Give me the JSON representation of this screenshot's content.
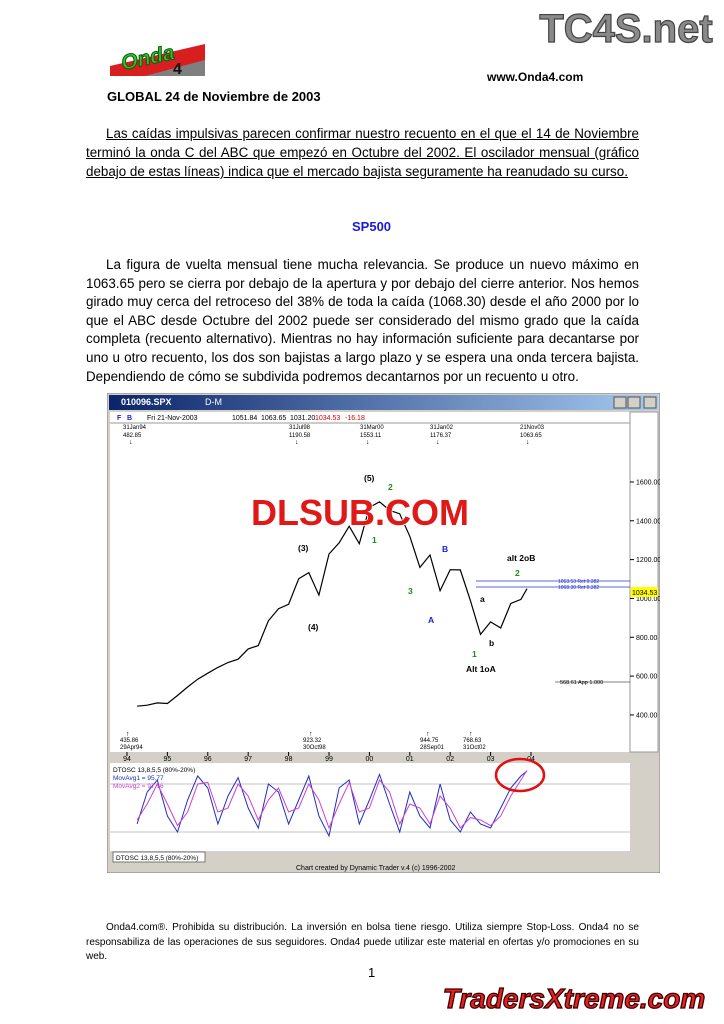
{
  "watermarks": {
    "top": "TC4S.net",
    "center": "DLSUB.COM",
    "bottom": "TradersXtreme.com"
  },
  "logo": {
    "word": "Onda",
    "number": "4"
  },
  "header": {
    "url": "www.Onda4.com",
    "title": "GLOBAL 24 de Noviembre de 2003"
  },
  "intro": "Las caídas impulsivas parecen confirmar nuestro recuento en el que el 14 de Noviembre terminó la onda C del ABC que empezó en Octubre del 2002. El oscilador mensual (gráfico debajo de estas líneas) indica que el mercado bajista seguramente ha reanudado su curso.",
  "section": "SP500",
  "body": "La figura de vuelta mensual tiene mucha relevancia. Se produce un nuevo máximo en 1063.65 pero se cierra por debajo de la apertura y por debajo del cierre anterior. Nos hemos girado muy cerca del retroceso del 38% de toda la caída (1068.30) desde el año 2000 por lo que el ABC desde Octubre del 2002 puede ser considerado del mismo grado que la caída completa (recuento alternativo). Mientras no hay información suficiente para decantarse por uno u otro recuento, los dos son bajistas a largo plazo y se espera una onda tercera bajista. Dependiendo de cómo se subdivida podremos decantarnos por un recuento u otro.",
  "figure": {
    "window_title": "010096.SPX",
    "period": "D-M",
    "toolbar": [
      "F",
      "B",
      "Fri 21-Nov-2003",
      "1051.84",
      "1063.65",
      "1031.20",
      "1034.53",
      "-16.18"
    ],
    "top_pivots": [
      [
        "31Jan94",
        "482.85"
      ],
      [
        "31Jul98",
        "1190.58"
      ],
      [
        "31Mar00",
        "1553.11"
      ],
      [
        "31Jan02",
        "1176.37"
      ],
      [
        "21Nov03",
        "1063.65"
      ]
    ],
    "bottom_pivots": [
      [
        "435.86",
        "29Apr94"
      ],
      [
        "923.32",
        "30Oct98"
      ],
      [
        "944.75",
        "28Sep01"
      ],
      [
        "768.63",
        "31Oct02"
      ]
    ],
    "wave_labels": [
      "(5)",
      "2",
      "1",
      "(3)",
      "(4)",
      "3",
      "A",
      "B",
      "1",
      "2",
      "a",
      "b",
      "alt 2oB",
      "Alt 1oA"
    ],
    "level_labels": [
      "1063.53 Ret 0.382",
      "1068.30 Ret 0.382",
      "568.61 App 1.000"
    ],
    "last_price": "1034.53",
    "osc_title": "DTOSC 13,8,5,5 (80%-20%)",
    "osc_ma1": "MovAvg1 = 95.77",
    "osc_ma2": "MovAvg2 = 97.16",
    "osc_tab": "DTOSC 13,8,5,5 (80%-20%)",
    "credit": "Chart created by Dynamic Trader v.4  (c) 1996-2002"
  },
  "chart_data": [
    {
      "type": "line",
      "x": [
        1994.25,
        1994.5,
        1994.75,
        1995,
        1995.25,
        1995.5,
        1995.75,
        1996,
        1996.25,
        1996.5,
        1996.75,
        1997,
        1997.25,
        1997.5,
        1997.75,
        1998,
        1998.25,
        1998.5,
        1998.75,
        1999,
        1999.25,
        1999.5,
        1999.75,
        2000,
        2000.25,
        2000.5,
        2000.75,
        2001,
        2001.25,
        2001.5,
        2001.75,
        2002,
        2002.25,
        2002.5,
        2002.75,
        2003,
        2003.25,
        2003.5,
        2003.75,
        2003.9
      ],
      "series": [
        {
          "color": "#000000",
          "values": [
            445,
            450,
            462,
            459,
            500,
            544,
            584,
            615,
            645,
            670,
            687,
            740,
            757,
            885,
            947,
            970,
            1101,
            1133,
            1017,
            1229,
            1286,
            1372,
            1282,
            1469,
            1498,
            1454,
            1436,
            1320,
            1160,
            1224,
            1040,
            1148,
            1147,
            989,
            815,
            879,
            848,
            974,
            995,
            1050
          ]
        }
      ],
      "xlim": [
        1993.58,
        2006.45
      ],
      "ylim": [
        209,
        1878
      ],
      "xticks": [
        {
          "value": 1994,
          "label": "94"
        },
        {
          "value": 1995,
          "label": "95"
        },
        {
          "value": 1996,
          "label": "96"
        },
        {
          "value": 1997,
          "label": "97"
        },
        {
          "value": 1998,
          "label": "98"
        },
        {
          "value": 1999,
          "label": "99"
        },
        {
          "value": 2000,
          "label": "00"
        },
        {
          "value": 2001,
          "label": "01"
        },
        {
          "value": 2002,
          "label": "02"
        },
        {
          "value": 2003,
          "label": "03"
        },
        {
          "value": 2004,
          "label": "04"
        }
      ],
      "yticks": [
        {
          "value": 1600,
          "label": "1600.00"
        },
        {
          "value": 1400,
          "label": "1400.00"
        },
        {
          "value": 1200,
          "label": "1200.00"
        },
        {
          "value": 1000,
          "label": "1000.00"
        },
        {
          "value": 800,
          "label": "800.00"
        },
        {
          "value": 600,
          "label": "600.00"
        },
        {
          "value": 400,
          "label": "400.00"
        }
      ]
    },
    {
      "type": "line",
      "x": [
        1994.25,
        1994.5,
        1994.75,
        1995,
        1995.25,
        1995.5,
        1995.75,
        1996,
        1996.25,
        1996.5,
        1996.75,
        1997,
        1997.25,
        1997.5,
        1997.75,
        1998,
        1998.25,
        1998.5,
        1998.75,
        1999,
        1999.25,
        1999.5,
        1999.75,
        2000,
        2000.25,
        2000.5,
        2000.75,
        2001,
        2001.25,
        2001.5,
        2001.75,
        2002,
        2002.25,
        2002.5,
        2002.75,
        2003,
        2003.25,
        2003.5,
        2003.75,
        2003.9
      ],
      "series": [
        {
          "color": "#1f2fc0",
          "values": [
            30,
            70,
            85,
            40,
            20,
            60,
            90,
            75,
            30,
            65,
            88,
            50,
            25,
            80,
            70,
            30,
            60,
            90,
            40,
            15,
            75,
            85,
            30,
            60,
            92,
            55,
            20,
            70,
            40,
            25,
            80,
            35,
            20,
            45,
            30,
            25,
            50,
            75,
            90,
            96
          ]
        },
        {
          "color": "#d040d0",
          "values": [
            35,
            55,
            80,
            55,
            28,
            45,
            80,
            82,
            45,
            50,
            80,
            65,
            35,
            60,
            75,
            45,
            50,
            80,
            60,
            25,
            55,
            82,
            45,
            50,
            85,
            70,
            30,
            55,
            50,
            30,
            65,
            50,
            25,
            38,
            35,
            28,
            40,
            65,
            85,
            97
          ]
        }
      ],
      "xlim": [
        1993.58,
        2006.45
      ],
      "ylim": [
        0,
        100
      ],
      "levels": [
        80,
        20
      ]
    }
  ],
  "footer": "Onda4.com®. Prohibida su distribución. La inversión en bolsa tiene riesgo. Utiliza siempre Stop-Loss. Onda4 no se responsabiliza de las operaciones de sus seguidores. Onda4 puede utilizar este material en ofertas y/o promociones en su web.",
  "page": "1"
}
